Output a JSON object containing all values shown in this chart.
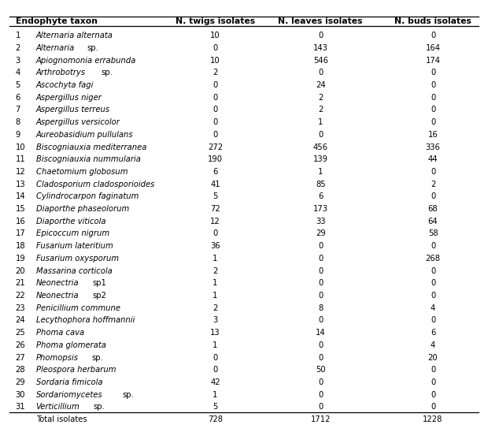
{
  "headers": [
    "Endophyte taxon",
    "N. twigs isolates",
    "N. leaves isolates",
    "N. buds isolates"
  ],
  "rows": [
    [
      "1",
      "Alternaria alternata",
      true,
      "10",
      "0",
      "0"
    ],
    [
      "2",
      "Alternaria",
      "sp.",
      "0",
      "143",
      "164"
    ],
    [
      "3",
      "Apiognomonia errabunda",
      true,
      "10",
      "546",
      "174"
    ],
    [
      "4",
      "Arthrobotrys",
      "sp.",
      "2",
      "0",
      "0"
    ],
    [
      "5",
      "Ascochyta fagi",
      true,
      "0",
      "24",
      "0"
    ],
    [
      "6",
      "Aspergillus niger",
      true,
      "0",
      "2",
      "0"
    ],
    [
      "7",
      "Aspergillus terreus",
      true,
      "0",
      "2",
      "0"
    ],
    [
      "8",
      "Aspergillus versicolor",
      true,
      "0",
      "1",
      "0"
    ],
    [
      "9",
      "Aureobasidium pullulans",
      true,
      "0",
      "0",
      "16"
    ],
    [
      "10",
      "Biscogniauxia mediterranea",
      true,
      "272",
      "456",
      "336"
    ],
    [
      "11",
      "Biscogniauxia nummularia",
      true,
      "190",
      "139",
      "44"
    ],
    [
      "12",
      "Chaetomium globosum",
      true,
      "6",
      "1",
      "0"
    ],
    [
      "13",
      "Cladosporium cladosporioides",
      true,
      "41",
      "85",
      "2"
    ],
    [
      "14",
      "Cylindrocarpon faginatum",
      true,
      "5",
      "6",
      "0"
    ],
    [
      "15",
      "Diaporthe phaseolorum",
      true,
      "72",
      "173",
      "68"
    ],
    [
      "16",
      "Diaporthe viticola",
      true,
      "12",
      "33",
      "64"
    ],
    [
      "17",
      "Epicoccum nigrum",
      true,
      "0",
      "29",
      "58"
    ],
    [
      "18",
      "Fusarium lateritium",
      true,
      "36",
      "0",
      "0"
    ],
    [
      "19",
      "Fusarium oxysporum",
      true,
      "1",
      "0",
      "268"
    ],
    [
      "20",
      "Massarina corticola",
      true,
      "2",
      "0",
      "0"
    ],
    [
      "21",
      "Neonectria",
      "sp1",
      "1",
      "0",
      "0"
    ],
    [
      "22",
      "Neonectria",
      "sp2",
      "1",
      "0",
      "0"
    ],
    [
      "23",
      "Penicillium commune",
      true,
      "2",
      "8",
      "4"
    ],
    [
      "24",
      "Lecythophora hoffmannii",
      true,
      "3",
      "0",
      "0"
    ],
    [
      "25",
      "Phoma cava",
      true,
      "13",
      "14",
      "6"
    ],
    [
      "26",
      "Phoma glomerata",
      true,
      "1",
      "0",
      "4"
    ],
    [
      "27",
      "Phomopsis",
      "sp.",
      "0",
      "0",
      "20"
    ],
    [
      "28",
      "Pleospora herbarum",
      true,
      "0",
      "50",
      "0"
    ],
    [
      "29",
      "Sordaria fimicola",
      true,
      "42",
      "0",
      "0"
    ],
    [
      "30",
      "Sordariomycetes",
      "sp.",
      "1",
      "0",
      "0"
    ],
    [
      "31",
      "Verticillium",
      "sp.",
      "5",
      "0",
      "0"
    ]
  ],
  "totals": [
    "Total isolates",
    "728",
    "1712",
    "1228"
  ],
  "bg_color": "#FFFFFF",
  "text_color": "#000000",
  "fontsize": 7.2,
  "header_fontsize": 7.8
}
